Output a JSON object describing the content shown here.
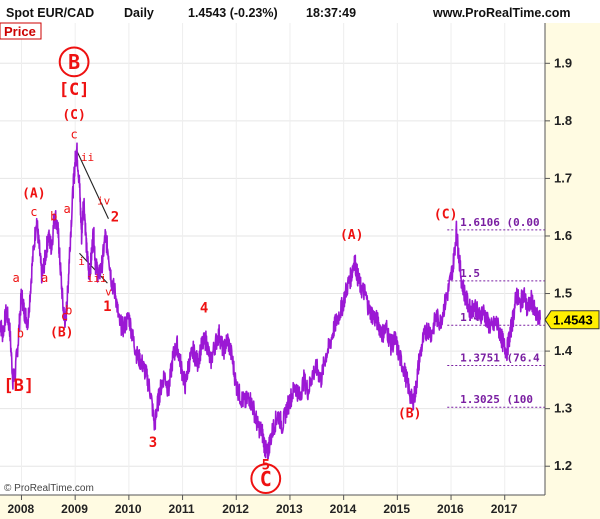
{
  "header": {
    "symbol": "Spot EUR/CAD",
    "timeframe": "Daily",
    "last_change": "1.4543 (-0.23%)",
    "time": "18:37:49",
    "website": "www.ProRealTime.com"
  },
  "panel_label": "Price",
  "copyright": "© ProRealTime.com",
  "colors": {
    "price_line": "#9b18d4",
    "wave_labels": "#ee1111",
    "fib_levels": "#7a1fa2",
    "last_price_badge": "#ffee00",
    "axis_bg": "#fffbe2",
    "page_bg": "#ffffff"
  },
  "chart_data": {
    "type": "line",
    "title": "Spot EUR/CAD Daily",
    "ylim": [
      1.15,
      1.97
    ],
    "xlim": [
      2007.6,
      2017.75
    ],
    "y_ticks": [
      "1.2",
      "1.3",
      "1.4",
      "1.5",
      "1.6",
      "1.7",
      "1.8",
      "1.9"
    ],
    "x_ticks": [
      "2008",
      "2009",
      "2010",
      "2011",
      "2012",
      "2013",
      "2014",
      "2015",
      "2016",
      "2017"
    ],
    "last_price": "1.4543",
    "series": [
      {
        "points": [
          [
            2007.6,
            1.45
          ],
          [
            2007.65,
            1.43
          ],
          [
            2007.72,
            1.47
          ],
          [
            2007.78,
            1.44
          ],
          [
            2007.84,
            1.35
          ],
          [
            2007.88,
            1.36
          ],
          [
            2007.94,
            1.42
          ],
          [
            2008.0,
            1.5
          ],
          [
            2008.05,
            1.47
          ],
          [
            2008.12,
            1.45
          ],
          [
            2008.2,
            1.55
          ],
          [
            2008.28,
            1.63
          ],
          [
            2008.33,
            1.58
          ],
          [
            2008.38,
            1.53
          ],
          [
            2008.44,
            1.56
          ],
          [
            2008.5,
            1.6
          ],
          [
            2008.56,
            1.58
          ],
          [
            2008.62,
            1.64
          ],
          [
            2008.68,
            1.61
          ],
          [
            2008.72,
            1.55
          ],
          [
            2008.78,
            1.47
          ],
          [
            2008.82,
            1.45
          ],
          [
            2008.86,
            1.5
          ],
          [
            2008.9,
            1.58
          ],
          [
            2008.96,
            1.68
          ],
          [
            2009.0,
            1.73
          ],
          [
            2009.03,
            1.75
          ],
          [
            2009.08,
            1.69
          ],
          [
            2009.12,
            1.6
          ],
          [
            2009.16,
            1.67
          ],
          [
            2009.21,
            1.58
          ],
          [
            2009.26,
            1.53
          ],
          [
            2009.3,
            1.56
          ],
          [
            2009.34,
            1.61
          ],
          [
            2009.38,
            1.55
          ],
          [
            2009.44,
            1.53
          ],
          [
            2009.5,
            1.55
          ],
          [
            2009.56,
            1.6
          ],
          [
            2009.62,
            1.57
          ],
          [
            2009.68,
            1.52
          ],
          [
            2009.75,
            1.5
          ],
          [
            2009.82,
            1.45
          ],
          [
            2009.9,
            1.44
          ],
          [
            2010.0,
            1.46
          ],
          [
            2010.08,
            1.42
          ],
          [
            2010.16,
            1.39
          ],
          [
            2010.24,
            1.38
          ],
          [
            2010.32,
            1.36
          ],
          [
            2010.4,
            1.33
          ],
          [
            2010.48,
            1.27
          ],
          [
            2010.52,
            1.3
          ],
          [
            2010.58,
            1.33
          ],
          [
            2010.66,
            1.36
          ],
          [
            2010.74,
            1.33
          ],
          [
            2010.82,
            1.39
          ],
          [
            2010.9,
            1.41
          ],
          [
            2010.98,
            1.37
          ],
          [
            2011.05,
            1.34
          ],
          [
            2011.12,
            1.38
          ],
          [
            2011.2,
            1.4
          ],
          [
            2011.28,
            1.38
          ],
          [
            2011.36,
            1.41
          ],
          [
            2011.44,
            1.42
          ],
          [
            2011.52,
            1.38
          ],
          [
            2011.6,
            1.41
          ],
          [
            2011.68,
            1.43
          ],
          [
            2011.76,
            1.4
          ],
          [
            2011.84,
            1.42
          ],
          [
            2011.92,
            1.39
          ],
          [
            2012.0,
            1.34
          ],
          [
            2012.08,
            1.32
          ],
          [
            2012.16,
            1.31
          ],
          [
            2012.24,
            1.32
          ],
          [
            2012.32,
            1.3
          ],
          [
            2012.4,
            1.27
          ],
          [
            2012.48,
            1.26
          ],
          [
            2012.54,
            1.23
          ],
          [
            2012.58,
            1.22
          ],
          [
            2012.62,
            1.24
          ],
          [
            2012.7,
            1.27
          ],
          [
            2012.78,
            1.29
          ],
          [
            2012.86,
            1.27
          ],
          [
            2012.94,
            1.3
          ],
          [
            2013.02,
            1.32
          ],
          [
            2013.1,
            1.34
          ],
          [
            2013.18,
            1.32
          ],
          [
            2013.26,
            1.35
          ],
          [
            2013.34,
            1.33
          ],
          [
            2013.42,
            1.36
          ],
          [
            2013.5,
            1.37
          ],
          [
            2013.58,
            1.35
          ],
          [
            2013.66,
            1.39
          ],
          [
            2013.74,
            1.41
          ],
          [
            2013.82,
            1.44
          ],
          [
            2013.9,
            1.46
          ],
          [
            2013.98,
            1.48
          ],
          [
            2014.06,
            1.51
          ],
          [
            2014.14,
            1.53
          ],
          [
            2014.2,
            1.56
          ],
          [
            2014.26,
            1.53
          ],
          [
            2014.32,
            1.51
          ],
          [
            2014.4,
            1.5
          ],
          [
            2014.48,
            1.47
          ],
          [
            2014.56,
            1.46
          ],
          [
            2014.64,
            1.45
          ],
          [
            2014.72,
            1.43
          ],
          [
            2014.8,
            1.44
          ],
          [
            2014.88,
            1.41
          ],
          [
            2014.96,
            1.42
          ],
          [
            2015.04,
            1.39
          ],
          [
            2015.12,
            1.37
          ],
          [
            2015.2,
            1.34
          ],
          [
            2015.28,
            1.31
          ],
          [
            2015.34,
            1.33
          ],
          [
            2015.4,
            1.38
          ],
          [
            2015.48,
            1.42
          ],
          [
            2015.56,
            1.44
          ],
          [
            2015.64,
            1.43
          ],
          [
            2015.72,
            1.46
          ],
          [
            2015.8,
            1.45
          ],
          [
            2015.88,
            1.48
          ],
          [
            2015.96,
            1.51
          ],
          [
            2016.04,
            1.55
          ],
          [
            2016.1,
            1.61
          ],
          [
            2016.14,
            1.57
          ],
          [
            2016.2,
            1.52
          ],
          [
            2016.28,
            1.49
          ],
          [
            2016.36,
            1.47
          ],
          [
            2016.44,
            1.48
          ],
          [
            2016.52,
            1.46
          ],
          [
            2016.6,
            1.47
          ],
          [
            2016.68,
            1.45
          ],
          [
            2016.76,
            1.44
          ],
          [
            2016.84,
            1.45
          ],
          [
            2016.92,
            1.43
          ],
          [
            2016.98,
            1.41
          ],
          [
            2017.04,
            1.4
          ],
          [
            2017.1,
            1.43
          ],
          [
            2017.16,
            1.46
          ],
          [
            2017.22,
            1.5
          ],
          [
            2017.28,
            1.48
          ],
          [
            2017.36,
            1.5
          ],
          [
            2017.42,
            1.47
          ],
          [
            2017.5,
            1.49
          ],
          [
            2017.58,
            1.46
          ],
          [
            2017.66,
            1.4543
          ]
        ]
      }
    ],
    "wave_labels": [
      {
        "text": "B",
        "x": 2008.98,
        "y": 1.89,
        "size": 20,
        "circled": true
      },
      {
        "text": "[C]",
        "x": 2008.98,
        "y": 1.845,
        "size": 17
      },
      {
        "text": "(C)",
        "x": 2008.98,
        "y": 1.803,
        "size": 13
      },
      {
        "text": "c",
        "x": 2008.98,
        "y": 1.769,
        "size": 12
      },
      {
        "text": "ii",
        "x": 2009.23,
        "y": 1.73,
        "size": 11
      },
      {
        "text": "(A)",
        "x": 2008.23,
        "y": 1.667,
        "size": 13
      },
      {
        "text": "c",
        "x": 2008.23,
        "y": 1.635,
        "size": 12
      },
      {
        "text": "b",
        "x": 2008.6,
        "y": 1.627,
        "size": 12
      },
      {
        "text": "a",
        "x": 2008.85,
        "y": 1.64,
        "size": 12
      },
      {
        "text": "iv",
        "x": 2009.53,
        "y": 1.655,
        "size": 11
      },
      {
        "text": "2",
        "x": 2009.74,
        "y": 1.625,
        "size": 14
      },
      {
        "text": "a",
        "x": 2007.9,
        "y": 1.52,
        "size": 12
      },
      {
        "text": "a",
        "x": 2008.43,
        "y": 1.52,
        "size": 12
      },
      {
        "text": "i",
        "x": 2009.12,
        "y": 1.55,
        "size": 11
      },
      {
        "text": "iii",
        "x": 2009.4,
        "y": 1.52,
        "size": 11
      },
      {
        "text": "v",
        "x": 2009.62,
        "y": 1.497,
        "size": 11
      },
      {
        "text": "1",
        "x": 2009.6,
        "y": 1.47,
        "size": 14
      },
      {
        "text": "b",
        "x": 2007.98,
        "y": 1.424,
        "size": 12
      },
      {
        "text": "c",
        "x": 2008.8,
        "y": 1.454,
        "size": 12
      },
      {
        "text": "b",
        "x": 2008.88,
        "y": 1.464,
        "size": 12
      },
      {
        "text": "(B)",
        "x": 2008.75,
        "y": 1.425,
        "size": 13
      },
      {
        "text": "[B]",
        "x": 2007.95,
        "y": 1.331,
        "size": 17
      },
      {
        "text": "4",
        "x": 2011.4,
        "y": 1.467,
        "size": 14
      },
      {
        "text": "3",
        "x": 2010.45,
        "y": 1.233,
        "size": 14
      },
      {
        "text": "5",
        "x": 2012.55,
        "y": 1.194,
        "size": 14
      },
      {
        "text": "C",
        "x": 2012.55,
        "y": 1.166,
        "size": 20,
        "circled": true
      },
      {
        "text": "(A)",
        "x": 2014.15,
        "y": 1.595,
        "size": 13
      },
      {
        "text": "(C)",
        "x": 2015.9,
        "y": 1.63,
        "size": 13
      },
      {
        "text": "(B)",
        "x": 2015.23,
        "y": 1.285,
        "size": 13
      }
    ],
    "price_levels": [
      {
        "label": "1.6106 (0.00",
        "value": 1.6106
      },
      {
        "label": "1.5",
        "value": 1.522
      },
      {
        "label": "1.4",
        "value": 1.445
      },
      {
        "label": "1.3751 (76.4",
        "value": 1.375
      },
      {
        "label": "1.3025 (100",
        "value": 1.3025
      }
    ],
    "trendlines": [
      [
        [
          2009.02,
          1.75
        ],
        [
          2009.62,
          1.63
        ]
      ],
      [
        [
          2009.08,
          1.57
        ],
        [
          2009.6,
          1.518
        ]
      ]
    ]
  }
}
